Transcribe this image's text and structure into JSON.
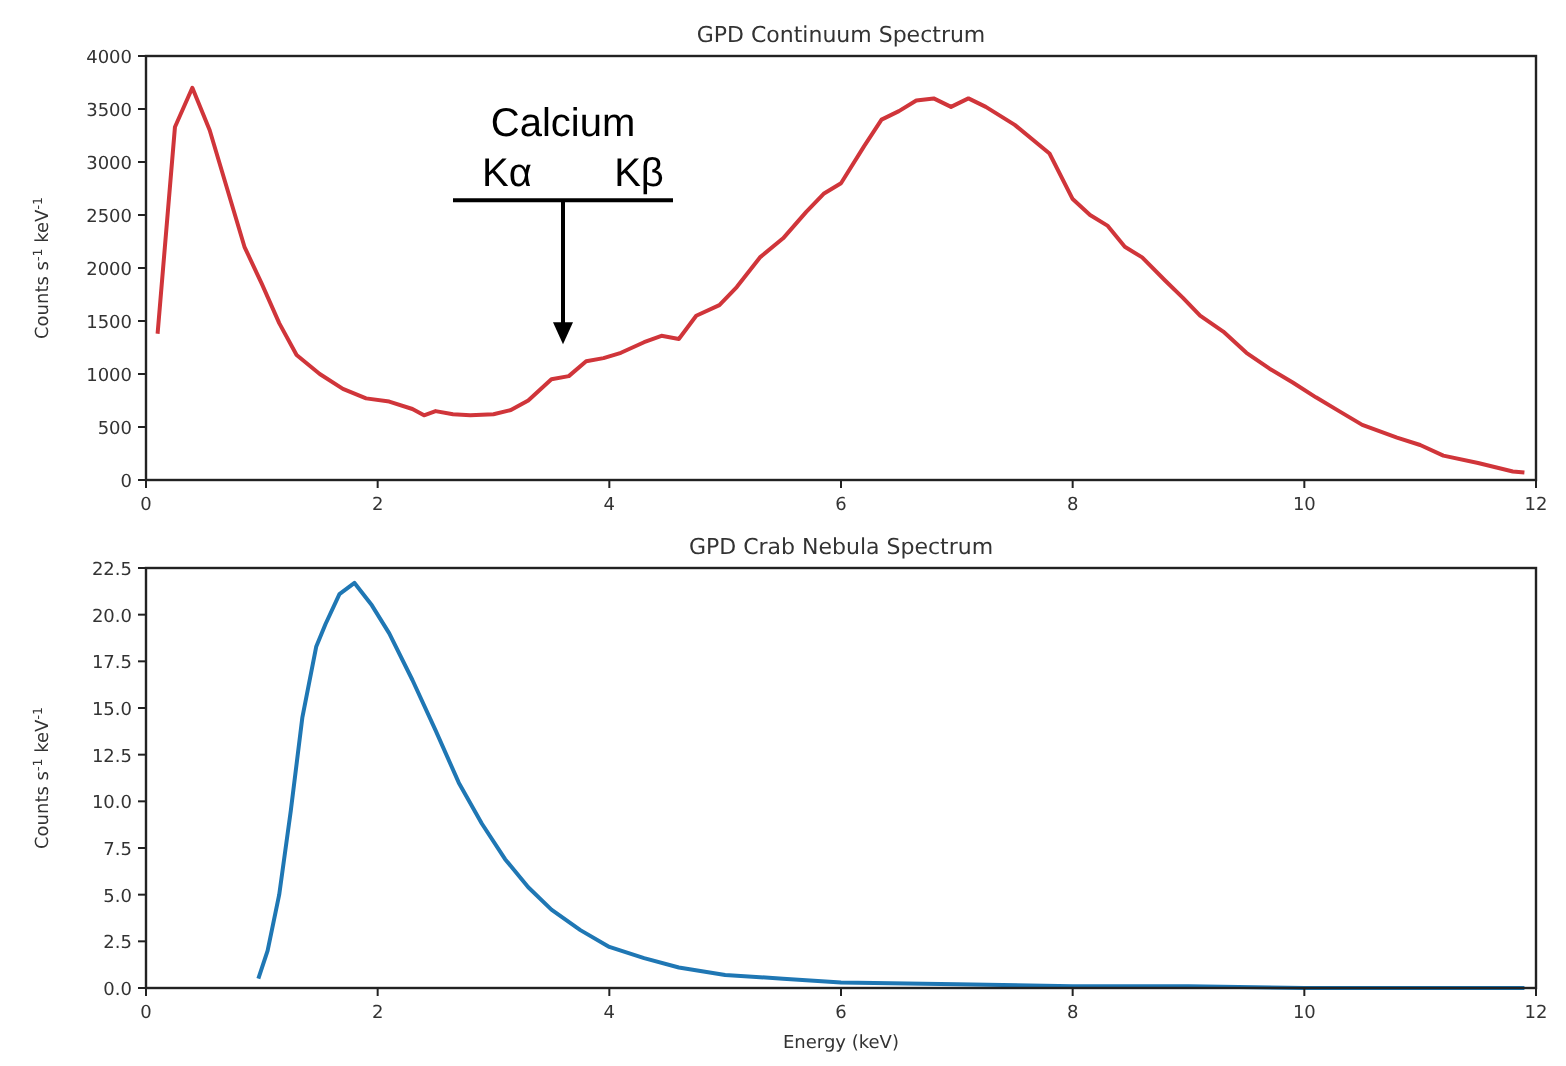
{
  "chart_data": [
    {
      "type": "line",
      "title": "GPD Continuum Spectrum",
      "ylabel": "Counts s$^{-1}$ keV$^{-1}$",
      "xlim": [
        0,
        12
      ],
      "xticks": [
        0,
        2,
        4,
        6,
        8,
        10,
        12
      ],
      "ylim": [
        0,
        4000
      ],
      "yticks": [
        0,
        500,
        1000,
        1500,
        2000,
        2500,
        3000,
        3500,
        4000
      ],
      "annotations": [
        "Calcium",
        "Kα",
        "Kβ"
      ],
      "series": [
        {
          "color": "#d0353a",
          "x": [
            0.1,
            0.25,
            0.4,
            0.55,
            0.7,
            0.85,
            1.0,
            1.15,
            1.3,
            1.5,
            1.7,
            1.9,
            2.1,
            2.3,
            2.4,
            2.5,
            2.65,
            2.8,
            3.0,
            3.15,
            3.3,
            3.5,
            3.65,
            3.8,
            3.95,
            4.1,
            4.3,
            4.45,
            4.6,
            4.75,
            4.95,
            5.1,
            5.3,
            5.5,
            5.7,
            5.85,
            6.0,
            6.2,
            6.35,
            6.5,
            6.65,
            6.8,
            6.95,
            7.1,
            7.25,
            7.5,
            7.8,
            8.0,
            8.15,
            8.3,
            8.45,
            8.6,
            8.8,
            8.95,
            9.1,
            9.3,
            9.5,
            9.7,
            9.9,
            10.1,
            10.3,
            10.5,
            10.8,
            11.0,
            11.2,
            11.5,
            11.8,
            11.9
          ],
          "values": [
            1380,
            3330,
            3700,
            3300,
            2750,
            2200,
            1850,
            1480,
            1180,
            1000,
            860,
            770,
            740,
            670,
            610,
            650,
            620,
            610,
            620,
            660,
            750,
            950,
            980,
            1120,
            1150,
            1200,
            1300,
            1360,
            1330,
            1550,
            1650,
            1820,
            2100,
            2280,
            2530,
            2700,
            2800,
            3150,
            3400,
            3480,
            3580,
            3600,
            3520,
            3600,
            3520,
            3350,
            3080,
            2650,
            2500,
            2400,
            2200,
            2100,
            1880,
            1720,
            1550,
            1400,
            1200,
            1050,
            920,
            780,
            650,
            520,
            400,
            330,
            230,
            160,
            80,
            70
          ]
        }
      ]
    },
    {
      "type": "line",
      "title": "GPD Crab Nebula Spectrum",
      "xlabel": "Energy (keV)",
      "ylabel": "Counts s$^{-1}$ keV$^{-1}$",
      "xlim": [
        0,
        12
      ],
      "xticks": [
        0,
        2,
        4,
        6,
        8,
        10,
        12
      ],
      "ylim": [
        0,
        22.5
      ],
      "yticks": [
        {
          "value": 0,
          "label": "0.0"
        },
        {
          "value": 2.5,
          "label": "2.5"
        },
        {
          "value": 5,
          "label": "5.0"
        },
        {
          "value": 7.5,
          "label": "7.5"
        },
        {
          "value": 10,
          "label": "10.0"
        },
        {
          "value": 12.5,
          "label": "12.5"
        },
        {
          "value": 15,
          "label": "15.0"
        },
        {
          "value": 17.5,
          "label": "17.5"
        },
        {
          "value": 20,
          "label": "20.0"
        },
        {
          "value": 22.5,
          "label": "22.5"
        }
      ],
      "series": [
        {
          "color": "#1f77b4",
          "x": [
            0.97,
            1.05,
            1.15,
            1.25,
            1.35,
            1.47,
            1.55,
            1.67,
            1.8,
            1.95,
            2.1,
            2.3,
            2.5,
            2.7,
            2.9,
            3.1,
            3.3,
            3.5,
            3.75,
            4.0,
            4.3,
            4.6,
            5.0,
            5.5,
            6.0,
            7.0,
            8.0,
            9.0,
            10.0,
            11.0,
            11.9
          ],
          "values": [
            0.5,
            2.0,
            5.0,
            9.5,
            14.5,
            18.3,
            19.5,
            21.1,
            21.7,
            20.5,
            19.0,
            16.5,
            13.8,
            11.0,
            8.8,
            6.9,
            5.4,
            4.2,
            3.1,
            2.2,
            1.6,
            1.1,
            0.7,
            0.5,
            0.3,
            0.2,
            0.1,
            0.1,
            0.0,
            0.0,
            0.0
          ]
        }
      ]
    }
  ]
}
